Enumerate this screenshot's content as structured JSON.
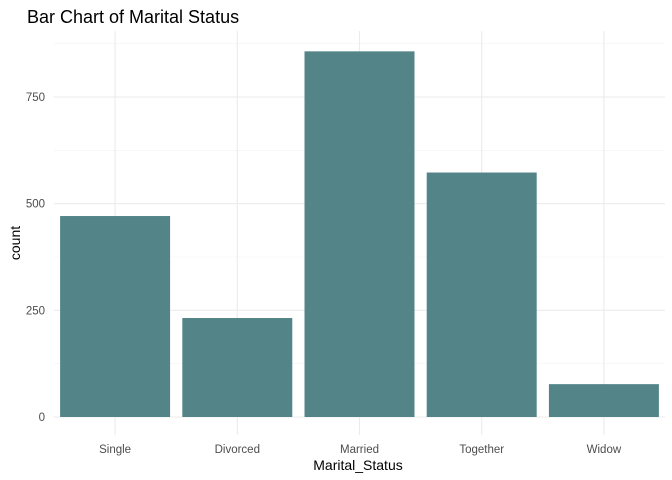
{
  "chart_data": {
    "type": "bar",
    "title": "Bar Chart of Marital Status",
    "xlabel": "Marital_Status",
    "ylabel": "count",
    "categories": [
      "Single",
      "Divorced",
      "Married",
      "Together",
      "Widow"
    ],
    "values": [
      471,
      232,
      857,
      573,
      77
    ],
    "ylim": [
      0,
      900
    ],
    "yticks": [
      0,
      250,
      500,
      750
    ],
    "ytick_labels": [
      "0",
      "250",
      "500",
      "750"
    ],
    "grid": true,
    "bar_color": "#528488"
  }
}
